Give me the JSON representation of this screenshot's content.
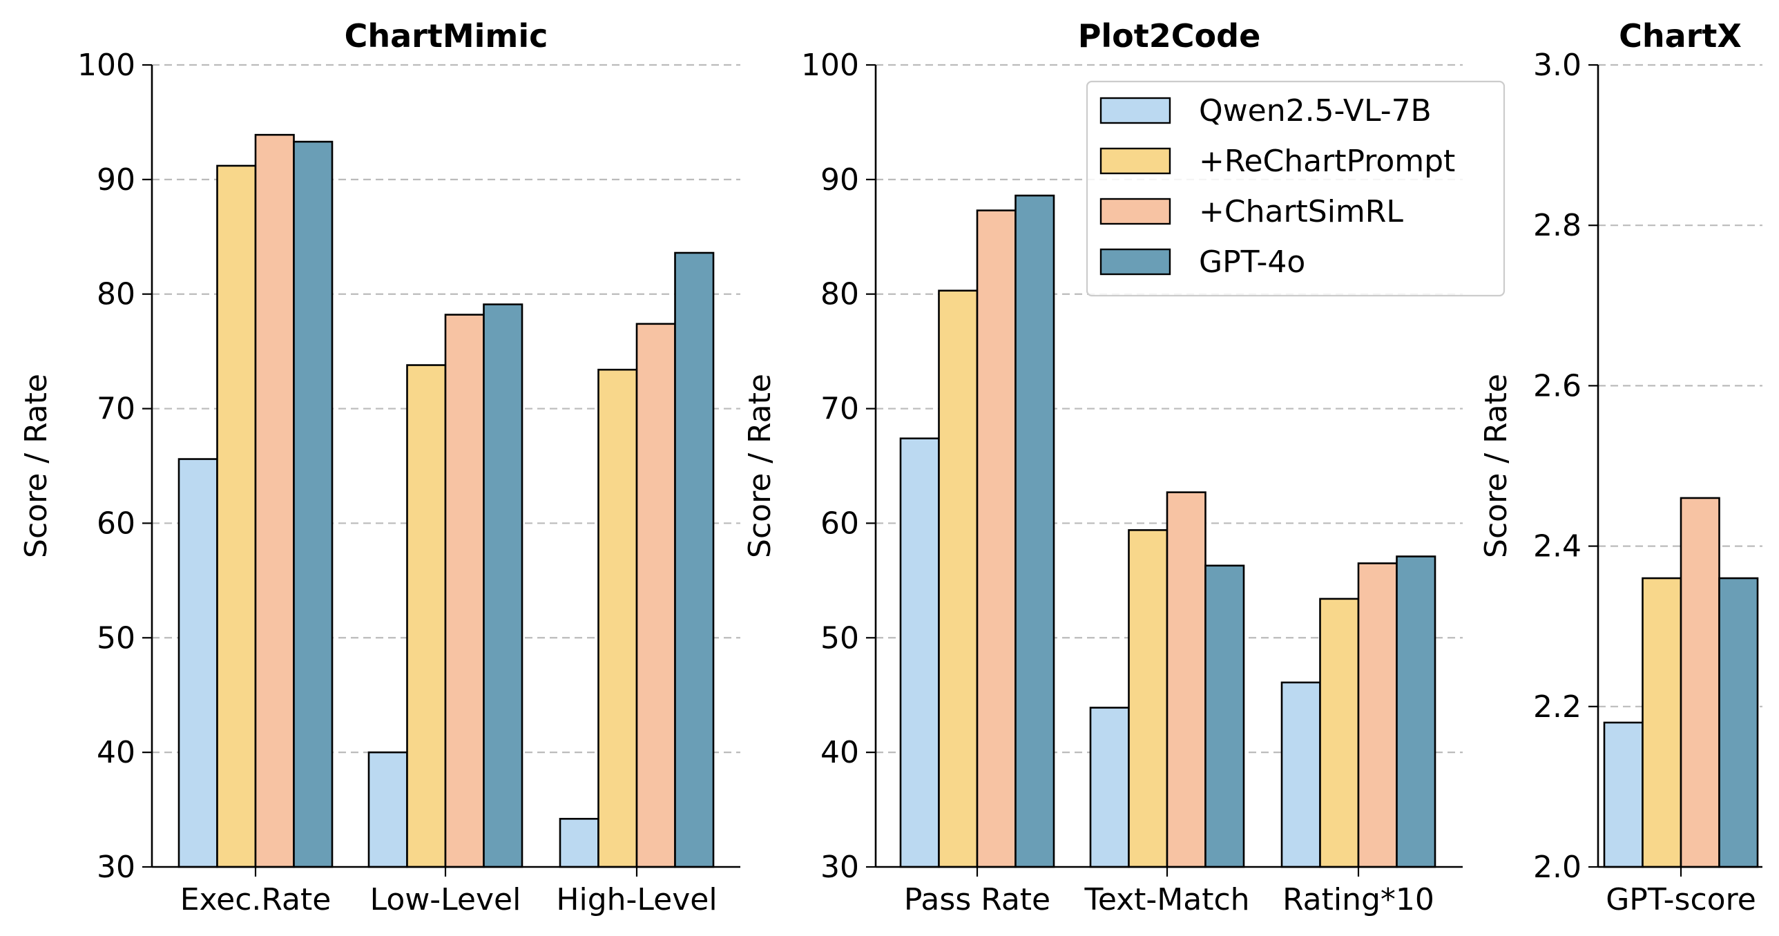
{
  "colors": {
    "series": [
      "#bbd9f1",
      "#f8d78b",
      "#f7c3a3",
      "#6a9eb6"
    ],
    "edge": "#000000",
    "grid": "#bbbbbb"
  },
  "legend": {
    "placement": "upper-right of second panel",
    "entries": [
      "Qwen2.5-VL-7B",
      "+ReChartPrompt",
      "+ChartSimRL",
      "GPT-4o"
    ]
  },
  "chart_data": [
    {
      "type": "bar",
      "title": "ChartMimic",
      "ylabel": "Score / Rate",
      "categories": [
        "Exec.Rate",
        "Low-Level",
        "High-Level"
      ],
      "ylim": [
        30,
        100
      ],
      "yticks": [
        "30",
        "40",
        "50",
        "60",
        "70",
        "80",
        "90",
        "100"
      ],
      "grid": "horizontal dashed",
      "series": [
        {
          "name": "Qwen2.5-VL-7B",
          "values": [
            65.6,
            40.0,
            34.2
          ]
        },
        {
          "name": "+ReChartPrompt",
          "values": [
            91.2,
            73.8,
            73.4
          ]
        },
        {
          "name": "+ChartSimRL",
          "values": [
            93.9,
            78.2,
            77.4
          ]
        },
        {
          "name": "GPT-4o",
          "values": [
            93.3,
            79.1,
            83.6
          ]
        }
      ]
    },
    {
      "type": "bar",
      "title": "Plot2Code",
      "ylabel": "Score / Rate",
      "categories": [
        "Pass Rate",
        "Text-Match",
        "Rating*10"
      ],
      "ylim": [
        30,
        100
      ],
      "yticks": [
        "30",
        "40",
        "50",
        "60",
        "70",
        "80",
        "90",
        "100"
      ],
      "grid": "horizontal dashed",
      "series": [
        {
          "name": "Qwen2.5-VL-7B",
          "values": [
            67.4,
            43.9,
            46.1
          ]
        },
        {
          "name": "+ReChartPrompt",
          "values": [
            80.3,
            59.4,
            53.4
          ]
        },
        {
          "name": "+ChartSimRL",
          "values": [
            87.3,
            62.7,
            56.5
          ]
        },
        {
          "name": "GPT-4o",
          "values": [
            88.6,
            56.3,
            57.1
          ]
        }
      ]
    },
    {
      "type": "bar",
      "title": "ChartX",
      "ylabel": "Score / Rate",
      "categories": [
        "GPT-score"
      ],
      "ylim": [
        2.0,
        3.0
      ],
      "yticks": [
        "2.0",
        "2.2",
        "2.4",
        "2.6",
        "2.8",
        "3.0"
      ],
      "grid": "horizontal dashed",
      "series": [
        {
          "name": "Qwen2.5-VL-7B",
          "values": [
            2.18
          ]
        },
        {
          "name": "+ReChartPrompt",
          "values": [
            2.36
          ]
        },
        {
          "name": "+ChartSimRL",
          "values": [
            2.46
          ]
        },
        {
          "name": "GPT-4o",
          "values": [
            2.36
          ]
        }
      ]
    }
  ]
}
